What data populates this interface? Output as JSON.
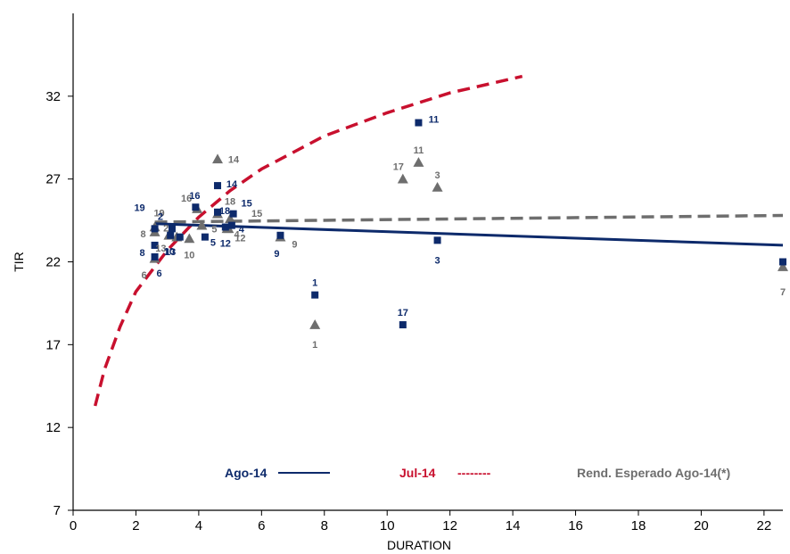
{
  "chart_data": {
    "type": "scatter",
    "xlabel": "DURATION",
    "ylabel": "TIR",
    "xlim": [
      0,
      22.6
    ],
    "ylim": [
      7,
      37
    ],
    "x_ticks": [
      "0",
      "2",
      "4",
      "6",
      "8",
      "10",
      "12",
      "14",
      "16",
      "18",
      "20",
      "22"
    ],
    "y_ticks": [
      "7",
      "12",
      "17",
      "22",
      "27",
      "32"
    ],
    "colors": {
      "ago": "#0d2a6b",
      "jul": "#c8102e",
      "esperado": "#6e6e6e"
    },
    "series": [
      {
        "name": "Ago-14",
        "marker": "square",
        "color": "#0d2a6b",
        "points": [
          {
            "label": "1",
            "x": 7.7,
            "y": 20.0
          },
          {
            "label": "2",
            "x": 3.15,
            "y": 24.0
          },
          {
            "label": "3",
            "x": 11.6,
            "y": 23.3
          },
          {
            "label": "4",
            "x": 5.05,
            "y": 24.2
          },
          {
            "label": "5",
            "x": 4.2,
            "y": 23.5
          },
          {
            "label": "6",
            "x": 2.6,
            "y": 22.3
          },
          {
            "label": "7",
            "x": 22.6,
            "y": 22.0
          },
          {
            "label": "8",
            "x": 2.6,
            "y": 23.0
          },
          {
            "label": "9",
            "x": 6.6,
            "y": 23.6
          },
          {
            "label": "10",
            "x": 3.4,
            "y": 23.5
          },
          {
            "label": "11",
            "x": 11.0,
            "y": 30.4
          },
          {
            "label": "12",
            "x": 4.85,
            "y": 24.1
          },
          {
            "label": "13",
            "x": 3.1,
            "y": 23.6
          },
          {
            "label": "14",
            "x": 4.6,
            "y": 26.6
          },
          {
            "label": "15",
            "x": 5.1,
            "y": 24.9
          },
          {
            "label": "16",
            "x": 3.9,
            "y": 25.3
          },
          {
            "label": "17",
            "x": 10.5,
            "y": 18.2
          },
          {
            "label": "18",
            "x": 4.6,
            "y": 25.0
          },
          {
            "label": "19",
            "x": 2.6,
            "y": 24.0
          }
        ],
        "trend": [
          [
            2.6,
            24.3
          ],
          [
            22.6,
            23.0
          ]
        ]
      },
      {
        "name": "Rend. Esperado Ago-14(*)",
        "marker": "triangle",
        "color": "#6e6e6e",
        "points": [
          {
            "label": "1",
            "x": 7.7,
            "y": 18.2
          },
          {
            "label": "2",
            "x": 3.3,
            "y": 23.5
          },
          {
            "label": "3",
            "x": 11.6,
            "y": 26.5
          },
          {
            "label": "4",
            "x": 4.9,
            "y": 24.0
          },
          {
            "label": "5",
            "x": 4.1,
            "y": 24.2
          },
          {
            "label": "6",
            "x": 2.6,
            "y": 22.2
          },
          {
            "label": "7",
            "x": 22.6,
            "y": 21.7
          },
          {
            "label": "8",
            "x": 2.6,
            "y": 23.8
          },
          {
            "label": "9",
            "x": 6.6,
            "y": 23.5
          },
          {
            "label": "10",
            "x": 3.7,
            "y": 23.4
          },
          {
            "label": "11",
            "x": 11.0,
            "y": 28.0
          },
          {
            "label": "12",
            "x": 4.95,
            "y": 24.0
          },
          {
            "label": "13",
            "x": 3.05,
            "y": 23.6
          },
          {
            "label": "14",
            "x": 4.6,
            "y": 28.2
          },
          {
            "label": "15",
            "x": 5.0,
            "y": 24.6
          },
          {
            "label": "16",
            "x": 3.95,
            "y": 25.2
          },
          {
            "label": "17",
            "x": 10.5,
            "y": 27.0
          },
          {
            "label": "18",
            "x": 4.6,
            "y": 24.9
          },
          {
            "label": "19",
            "x": 2.6,
            "y": 24.1
          }
        ],
        "trend": [
          [
            2.6,
            24.4
          ],
          [
            22.6,
            24.8
          ]
        ]
      },
      {
        "name": "Jul-14",
        "marker": "none",
        "color": "#c8102e",
        "curve": "log",
        "points": [
          {
            "x": 0.7,
            "y": 13.3
          },
          {
            "x": 1.0,
            "y": 15.5
          },
          {
            "x": 1.5,
            "y": 18.1
          },
          {
            "x": 2.0,
            "y": 20.2
          },
          {
            "x": 3.0,
            "y": 22.7
          },
          {
            "x": 4.0,
            "y": 24.7
          },
          {
            "x": 5.0,
            "y": 26.3
          },
          {
            "x": 6.0,
            "y": 27.6
          },
          {
            "x": 8.0,
            "y": 29.6
          },
          {
            "x": 10.0,
            "y": 31.0
          },
          {
            "x": 12.0,
            "y": 32.2
          },
          {
            "x": 14.3,
            "y": 33.2
          }
        ]
      }
    ],
    "legend": {
      "placement": "bottom",
      "items": [
        {
          "label": "Ago-14",
          "sample": "",
          "color": "#0d2a6b",
          "style": "solid"
        },
        {
          "label": "Jul-14",
          "sample": "--------",
          "color": "#c8102e",
          "style": "text-dash"
        },
        {
          "label": "Rend. Esperado Ago-14(*)",
          "sample": "",
          "color": "#6e6e6e",
          "style": "none"
        }
      ]
    }
  }
}
